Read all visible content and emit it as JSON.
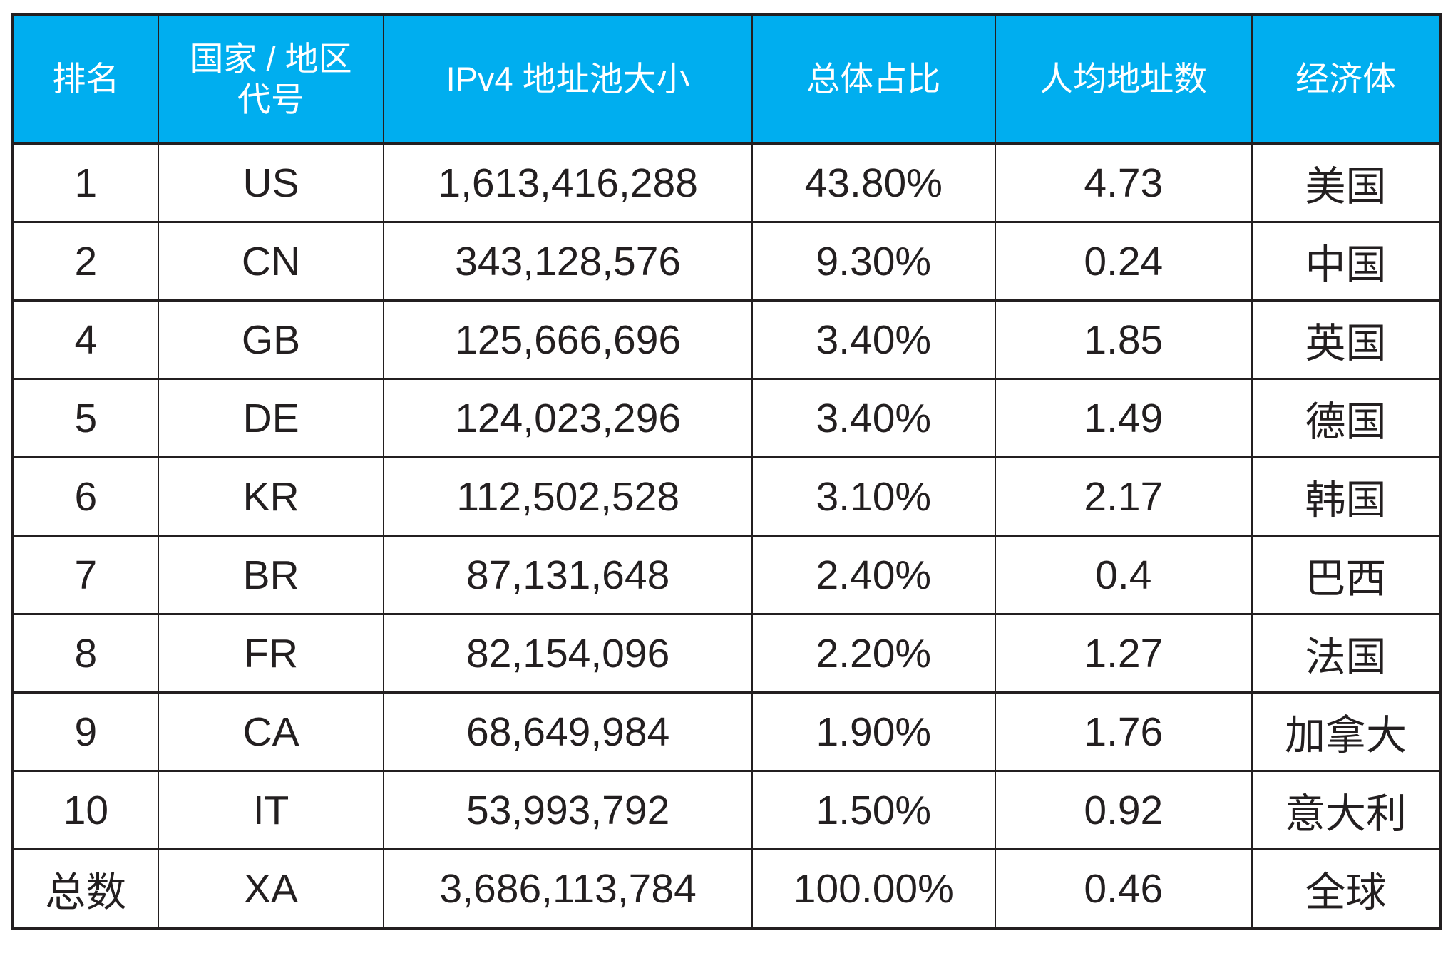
{
  "colors": {
    "header_background": "#00AEEF",
    "header_text": "#FFFFFF",
    "border": "#231F20",
    "body_text": "#231F20",
    "body_background": "#FFFFFF"
  },
  "table": {
    "columns": [
      {
        "key": "rank",
        "label": "排名"
      },
      {
        "key": "code",
        "label": "国家 / 地区\n代号"
      },
      {
        "key": "pool_size",
        "label": "IPv4 地址池大小"
      },
      {
        "key": "share",
        "label": "总体占比"
      },
      {
        "key": "per_capita",
        "label": "人均地址数"
      },
      {
        "key": "economy",
        "label": "经济体"
      }
    ],
    "rows": [
      [
        "1",
        "US",
        "1,613,416,288",
        "43.80%",
        "4.73",
        "美国"
      ],
      [
        "2",
        "CN",
        "343,128,576",
        "9.30%",
        "0.24",
        "中国"
      ],
      [
        "4",
        "GB",
        "125,666,696",
        "3.40%",
        "1.85",
        "英国"
      ],
      [
        "5",
        "DE",
        "124,023,296",
        "3.40%",
        "1.49",
        "德国"
      ],
      [
        "6",
        "KR",
        "112,502,528",
        "3.10%",
        "2.17",
        "韩国"
      ],
      [
        "7",
        "BR",
        "87,131,648",
        "2.40%",
        "0.4",
        "巴西"
      ],
      [
        "8",
        "FR",
        "82,154,096",
        "2.20%",
        "1.27",
        "法国"
      ],
      [
        "9",
        "CA",
        "68,649,984",
        "1.90%",
        "1.76",
        "加拿大"
      ],
      [
        "10",
        "IT",
        "53,993,792",
        "1.50%",
        "0.92",
        "意大利"
      ],
      [
        "总数",
        "XA",
        "3,686,113,784",
        "100.00%",
        "0.46",
        "全球"
      ]
    ]
  },
  "chart_data": {
    "type": "table",
    "title": "",
    "columns": [
      "排名",
      "国家 / 地区代号",
      "IPv4 地址池大小",
      "总体占比",
      "人均地址数",
      "经济体"
    ],
    "records": [
      {
        "rank": "1",
        "code": "US",
        "ipv4_pool_size": 1613416288,
        "overall_share_pct": 43.8,
        "addresses_per_capita": 4.73,
        "economy": "美国"
      },
      {
        "rank": "2",
        "code": "CN",
        "ipv4_pool_size": 343128576,
        "overall_share_pct": 9.3,
        "addresses_per_capita": 0.24,
        "economy": "中国"
      },
      {
        "rank": "4",
        "code": "GB",
        "ipv4_pool_size": 125666696,
        "overall_share_pct": 3.4,
        "addresses_per_capita": 1.85,
        "economy": "英国"
      },
      {
        "rank": "5",
        "code": "DE",
        "ipv4_pool_size": 124023296,
        "overall_share_pct": 3.4,
        "addresses_per_capita": 1.49,
        "economy": "德国"
      },
      {
        "rank": "6",
        "code": "KR",
        "ipv4_pool_size": 112502528,
        "overall_share_pct": 3.1,
        "addresses_per_capita": 2.17,
        "economy": "韩国"
      },
      {
        "rank": "7",
        "code": "BR",
        "ipv4_pool_size": 87131648,
        "overall_share_pct": 2.4,
        "addresses_per_capita": 0.4,
        "economy": "巴西"
      },
      {
        "rank": "8",
        "code": "FR",
        "ipv4_pool_size": 82154096,
        "overall_share_pct": 2.2,
        "addresses_per_capita": 1.27,
        "economy": "法国"
      },
      {
        "rank": "9",
        "code": "CA",
        "ipv4_pool_size": 68649984,
        "overall_share_pct": 1.9,
        "addresses_per_capita": 1.76,
        "economy": "加拿大"
      },
      {
        "rank": "10",
        "code": "IT",
        "ipv4_pool_size": 53993792,
        "overall_share_pct": 1.5,
        "addresses_per_capita": 0.92,
        "economy": "意大利"
      },
      {
        "rank": "总数",
        "code": "XA",
        "ipv4_pool_size": 3686113784,
        "overall_share_pct": 100.0,
        "addresses_per_capita": 0.46,
        "economy": "全球"
      }
    ]
  }
}
